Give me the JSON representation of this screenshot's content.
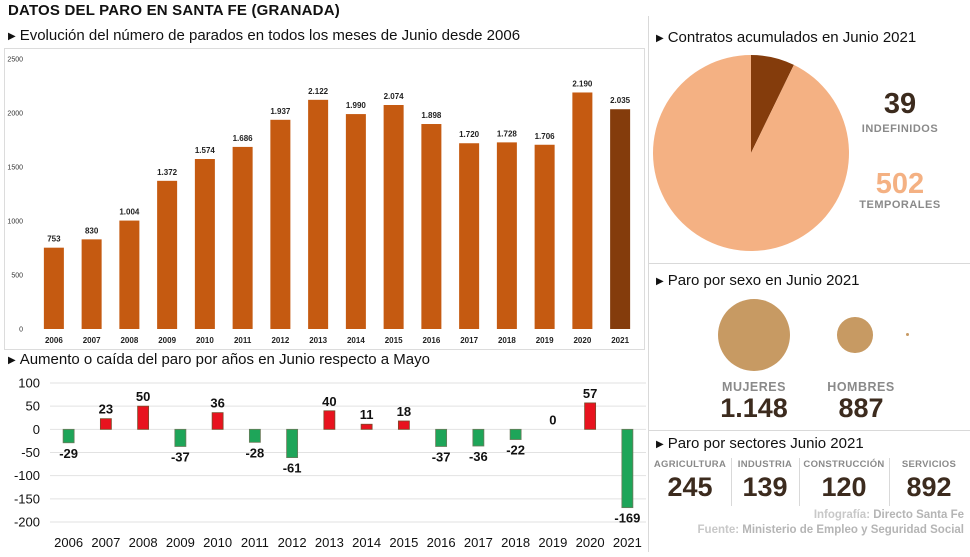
{
  "page_title": "DATOS DEL PARO EN SANTA FE (GRANADA)",
  "sections": {
    "evolution": "Evolución del número de parados en todos los meses de Junio desde 2006",
    "change": "Aumento o caída del paro por años en Junio respecto a Mayo",
    "contracts": "Contratos acumulados en Junio 2021",
    "gender": "Paro por sexo en Junio 2021",
    "sectors": "Paro por sectores Junio 2021"
  },
  "chart_data": [
    {
      "type": "bar",
      "categories": [
        "2006",
        "2007",
        "2008",
        "2009",
        "2010",
        "2011",
        "2012",
        "2013",
        "2014",
        "2015",
        "2016",
        "2017",
        "2018",
        "2019",
        "2020",
        "2021"
      ],
      "values": [
        753,
        830,
        1004,
        1372,
        1574,
        1686,
        1937,
        2122,
        1990,
        2074,
        1898,
        1720,
        1728,
        1706,
        2190,
        2035
      ],
      "value_labels": [
        "753",
        "830",
        "1.004",
        "1.372",
        "1.574",
        "1.686",
        "1.937",
        "2.122",
        "1.990",
        "2.074",
        "1.898",
        "1.720",
        "1.728",
        "1.706",
        "2.190",
        "2.035"
      ],
      "yticks": [
        "0",
        "500",
        "1000",
        "1500",
        "2000",
        "2500"
      ],
      "ylim": [
        0,
        2500
      ],
      "grid": false,
      "colors": {
        "bar": "#c55a11",
        "highlight": "#843c0c"
      },
      "highlight_category": "2021"
    },
    {
      "type": "bar",
      "categories": [
        "2006",
        "2007",
        "2008",
        "2009",
        "2010",
        "2011",
        "2012",
        "2013",
        "2014",
        "2015",
        "2016",
        "2017",
        "2018",
        "2019",
        "2020",
        "2021"
      ],
      "values": [
        -29,
        23,
        50,
        -37,
        36,
        -28,
        -61,
        40,
        11,
        18,
        -37,
        -36,
        -22,
        0,
        57,
        -169
      ],
      "value_labels": [
        "-29",
        "23",
        "50",
        "-37",
        "36",
        "-28",
        "-61",
        "40",
        "11",
        "18",
        "-37",
        "-36",
        "-22",
        "0",
        "57",
        "-169"
      ],
      "yticks": [
        "100",
        "50",
        "0",
        "-50",
        "-100",
        "-150",
        "-200"
      ],
      "ylim": [
        -200,
        100
      ],
      "grid": true,
      "colors": {
        "positive": "#e8131e",
        "negative": "#1ea559",
        "positive_edge": "#7a4a2a",
        "negative_edge": "#6a7a5a"
      }
    },
    {
      "type": "pie",
      "categories": [
        "INDEFINIDOS",
        "TEMPORALES"
      ],
      "values": [
        39,
        502
      ],
      "value_labels": [
        "39",
        "502"
      ],
      "colors": [
        "#843c0c",
        "#f4b183"
      ]
    }
  ],
  "gender": {
    "items": [
      {
        "label": "MUJERES",
        "value": 1148,
        "value_label": "1.148"
      },
      {
        "label": "HOMBRES",
        "value": 887,
        "value_label": "887"
      }
    ],
    "bubble_color": "#c79a63",
    "label_color": "#8a8a8a",
    "value_color": "#3c2b1e"
  },
  "sectors": [
    {
      "label": "AGRICULTURA",
      "value": "245"
    },
    {
      "label": "INDUSTRIA",
      "value": "139"
    },
    {
      "label": "CONSTRUCCIÓN",
      "value": "120"
    },
    {
      "label": "SERVICIOS",
      "value": "892"
    }
  ],
  "credits": {
    "line1_prefix": "Infografía:",
    "line1_source": "Directo Santa Fe",
    "line2_prefix": "Fuente:",
    "line2_source": "Ministerio de Empleo y Seguridad Social"
  },
  "colors": {
    "indefinidos_text": "#3c2b1e",
    "temporales_text": "#f4b183",
    "caption_grey": "#8a8a8a"
  }
}
